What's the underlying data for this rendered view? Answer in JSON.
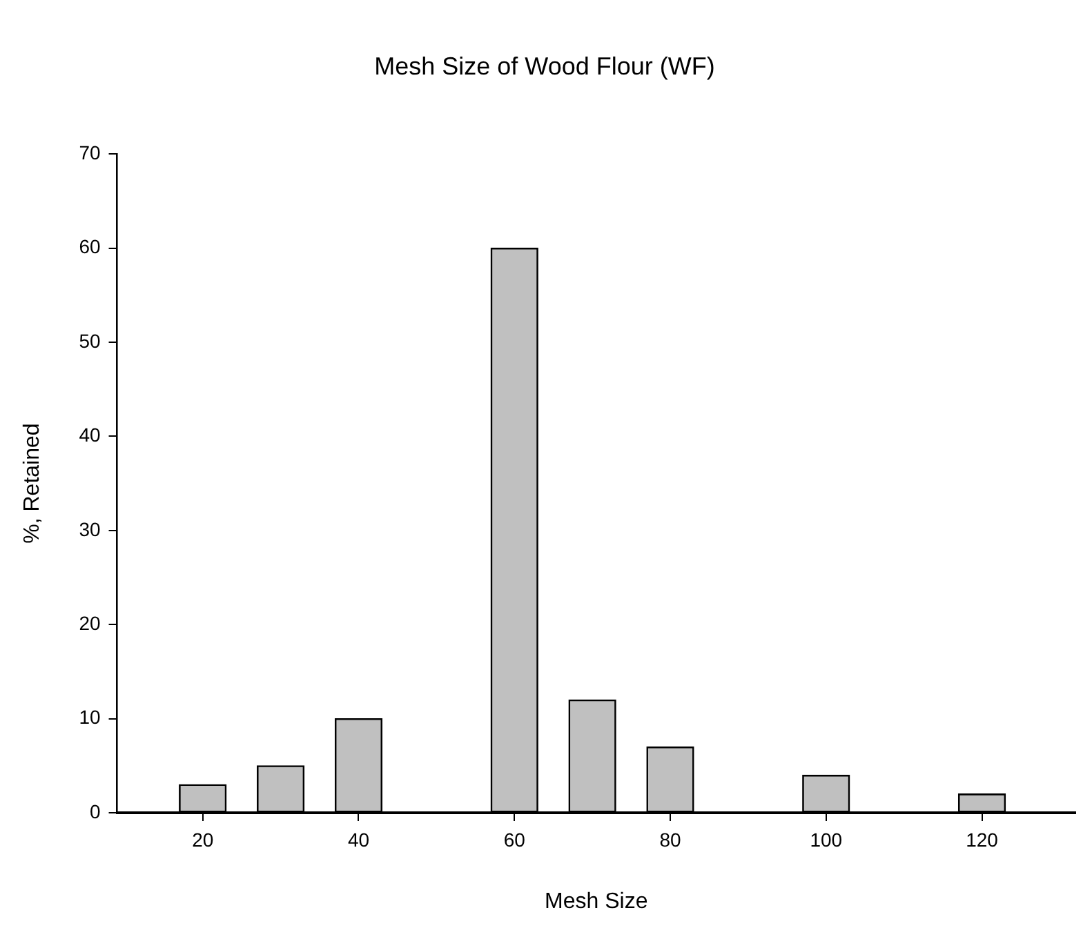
{
  "chart_data": {
    "type": "bar",
    "title": "Mesh Size of Wood Flour (WF)",
    "xlabel": "Mesh Size",
    "ylabel": "%, Retained",
    "x": [
      20,
      30,
      40,
      60,
      70,
      80,
      100,
      120
    ],
    "values": [
      3,
      5,
      10,
      60,
      12,
      7,
      4,
      2
    ],
    "color": "#c0c0c0",
    "xlim": [
      9,
      132
    ],
    "xticks": [
      20,
      40,
      60,
      80,
      100,
      120
    ],
    "ylim": [
      0,
      70
    ],
    "yticks": [
      0,
      10,
      20,
      30,
      40,
      50,
      60,
      70
    ],
    "grid": false,
    "legend": false
  }
}
